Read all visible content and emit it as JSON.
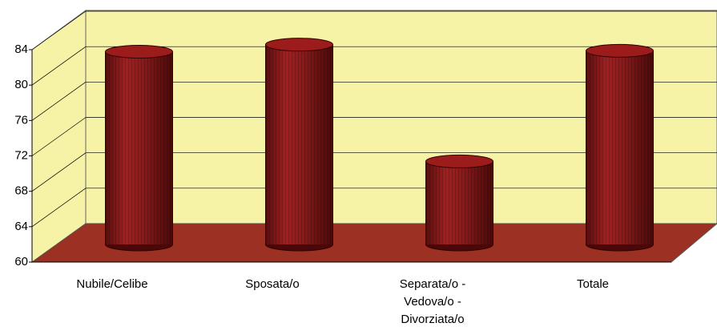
{
  "chart_data": {
    "type": "bar3d",
    "categories": [
      "Nubile/Celibe",
      "Sposata/o",
      "Separata/o - Vedova/o - Divorziata/o",
      "Totale"
    ],
    "values": [
      81.6,
      82.4,
      69.2,
      81.7
    ],
    "color": "#8b1a1a",
    "ylim": [
      60,
      84
    ],
    "yticks": [
      60,
      64,
      68,
      72,
      76,
      80,
      84
    ],
    "grid": true
  }
}
